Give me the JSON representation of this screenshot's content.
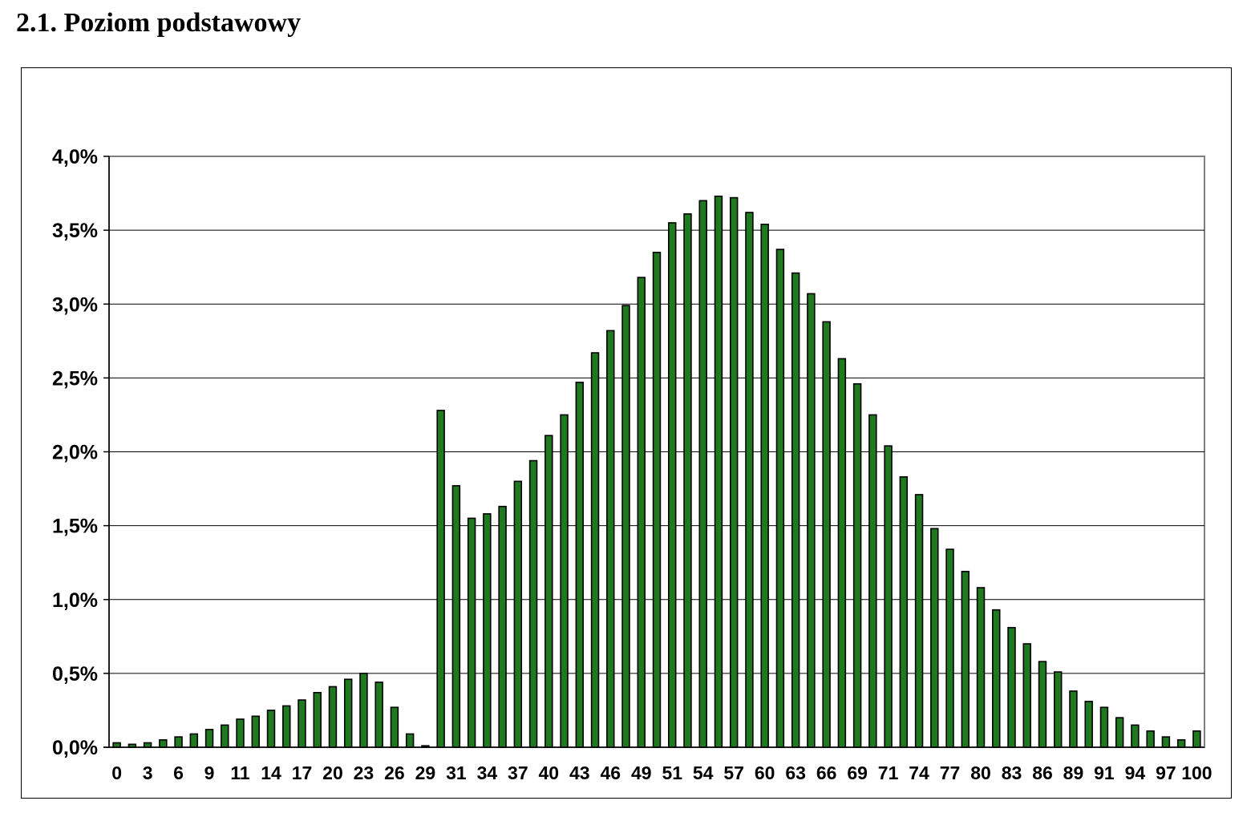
{
  "section_heading": "2.1. Poziom podstawowy",
  "chart_data": {
    "type": "bar",
    "title": "",
    "xlabel": "",
    "ylabel": "",
    "ylim": [
      0,
      4.0
    ],
    "y_ticks": [
      "0,0%",
      "0,5%",
      "1,0%",
      "1,5%",
      "2,0%",
      "2,5%",
      "3,0%",
      "3,5%",
      "4,0%"
    ],
    "y_tick_values": [
      0,
      0.5,
      1.0,
      1.5,
      2.0,
      2.5,
      3.0,
      3.5,
      4.0
    ],
    "grid": true,
    "bar_color": "#1f7a1f",
    "bar_edge_color": "#000000",
    "x_tick_labels": [
      "0",
      "3",
      "6",
      "9",
      "11",
      "14",
      "17",
      "20",
      "23",
      "26",
      "29",
      "31",
      "34",
      "37",
      "40",
      "43",
      "46",
      "49",
      "51",
      "54",
      "57",
      "60",
      "63",
      "66",
      "69",
      "71",
      "74",
      "77",
      "80",
      "83",
      "86",
      "89",
      "91",
      "94",
      "97",
      "100"
    ],
    "x_tick_label_bar_index": [
      0,
      2,
      4,
      6,
      8,
      10,
      12,
      14,
      16,
      18,
      20,
      22,
      24,
      26,
      28,
      30,
      32,
      34,
      36,
      38,
      40,
      42,
      44,
      46,
      48,
      50,
      52,
      54,
      56,
      58,
      60,
      62,
      64,
      66,
      68,
      70
    ],
    "values": [
      0.03,
      0.02,
      0.03,
      0.05,
      0.07,
      0.09,
      0.12,
      0.15,
      0.19,
      0.21,
      0.25,
      0.28,
      0.32,
      0.37,
      0.41,
      0.46,
      0.5,
      0.44,
      0.27,
      0.09,
      0.01,
      2.28,
      1.77,
      1.55,
      1.58,
      1.63,
      1.8,
      1.94,
      2.11,
      2.25,
      2.47,
      2.67,
      2.82,
      2.99,
      3.18,
      3.35,
      3.55,
      3.61,
      3.7,
      3.73,
      3.72,
      3.62,
      3.54,
      3.37,
      3.21,
      3.07,
      2.88,
      2.63,
      2.46,
      2.25,
      2.04,
      1.83,
      1.71,
      1.48,
      1.34,
      1.19,
      1.08,
      0.93,
      0.81,
      0.7,
      0.58,
      0.51,
      0.38,
      0.31,
      0.27,
      0.2,
      0.15,
      0.11,
      0.07,
      0.05,
      0.11
    ]
  }
}
